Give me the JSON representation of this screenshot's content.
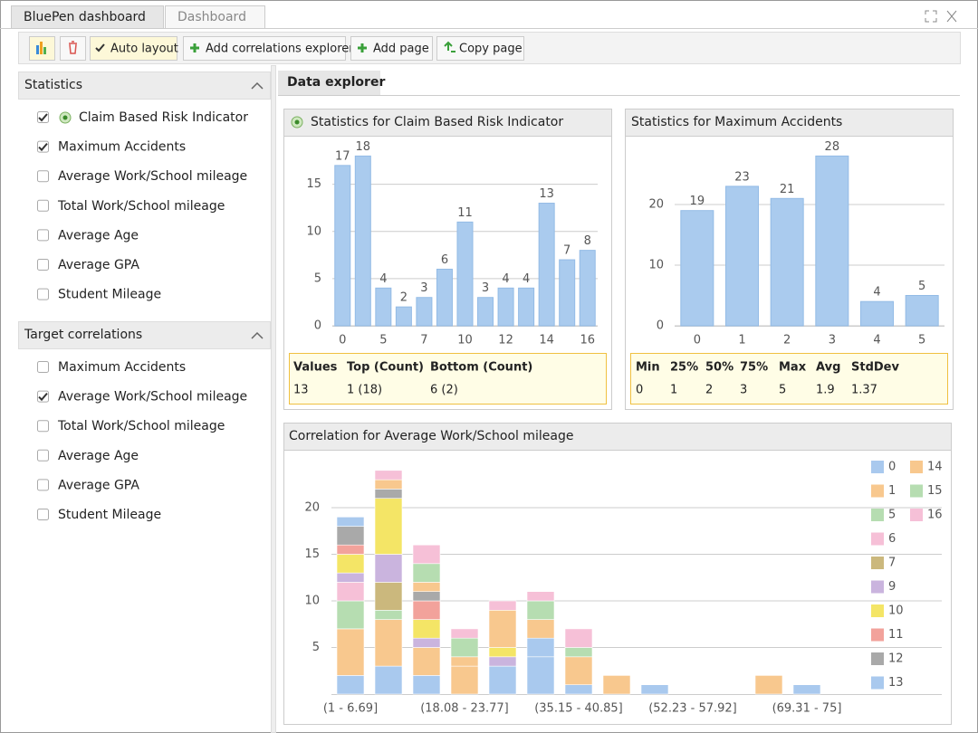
{
  "tabs": [
    "BluePen dashboard",
    "Dashboard"
  ],
  "toolbar": [
    "Auto layout",
    "Add correlations explorer",
    "Add page",
    "Copy page"
  ],
  "groups": [
    {
      "title": "Statistics",
      "items": [
        {
          "label": "Claim Based Risk Indicator",
          "checked": true
        },
        {
          "label": "Maximum Accidents",
          "checked": true
        },
        {
          "label": "Average Work/School mileage",
          "checked": false
        },
        {
          "label": "Total Work/School mileage",
          "checked": false
        },
        {
          "label": "Average Age",
          "checked": false
        },
        {
          "label": "Average GPA",
          "checked": false
        },
        {
          "label": "Student Mileage",
          "checked": false
        }
      ]
    },
    {
      "title": "Target correlations",
      "items": [
        {
          "label": "Maximum Accidents",
          "checked": false
        },
        {
          "label": "Average Work/School mileage",
          "checked": true
        },
        {
          "label": "Total Work/School mileage",
          "checked": false
        },
        {
          "label": "Average Age",
          "checked": false
        },
        {
          "label": "Average GPA",
          "checked": false
        },
        {
          "label": "Student Mileage",
          "checked": false
        }
      ]
    }
  ],
  "explorer_tab": "Data explorer",
  "panels": [
    {
      "title": "Statistics for Claim Based Risk Indicator",
      "chart": {
        "type": "bar",
        "color": "#aacbee",
        "categories": [
          0,
          null,
          5,
          null,
          7,
          null,
          10,
          null,
          12,
          null,
          14,
          null,
          16
        ],
        "values": [
          17,
          18,
          4,
          2,
          3,
          6,
          11,
          3,
          4,
          4,
          13,
          7,
          8
        ],
        "ylim": [
          0,
          19
        ],
        "yticks": [
          0,
          5,
          10,
          15
        ],
        "grid": true
      },
      "table": {
        "header": [
          "Values",
          "Top (Count)",
          "Bottom (Count)"
        ],
        "rows": [
          [
            13,
            "1 (18)",
            "6 (2)"
          ]
        ]
      }
    },
    {
      "title": "Statistics for Maximum Accidents",
      "chart": {
        "type": "bar",
        "color": "#aacbee",
        "categories": [
          0,
          1,
          2,
          3,
          4,
          5
        ],
        "values": [
          19,
          23,
          21,
          28,
          4,
          5
        ],
        "ylim": [
          0,
          30
        ],
        "yticks": [
          0,
          10,
          20
        ],
        "grid": true
      },
      "table": {
        "header": [
          "Min",
          "25%",
          "50%",
          "75%",
          "Max",
          "Avg",
          "StdDev"
        ],
        "rows": [
          [
            0,
            1,
            2,
            3,
            5,
            1.9,
            1.37
          ]
        ]
      }
    },
    {
      "title": "Correlation for Average Work/School mileage",
      "chart": {
        "type": "stacked_bar",
        "categories": [
          "(1 - 6.69]",
          null,
          null,
          "(18.08 - 23.77]",
          null,
          null,
          "(35.15 - 40.85]",
          null,
          null,
          "(52.23 - 57.92]",
          null,
          null,
          "(69.31 - 75]"
        ],
        "series": [
          {
            "name": "0",
            "color": "#a9c9ee",
            "values": [
              2,
              3,
              2,
              0,
              3,
              4,
              1,
              0,
              0,
              0,
              0,
              0,
              0
            ]
          },
          {
            "name": "1",
            "color": "#f8c88e",
            "values": [
              5,
              5,
              3,
              3,
              0,
              0,
              0,
              0,
              0,
              0,
              0,
              0,
              0
            ]
          },
          {
            "name": "5",
            "color": "#b6ddb1",
            "values": [
              3,
              1,
              0,
              0,
              0,
              0,
              0,
              0,
              0,
              0,
              0,
              0,
              0
            ]
          },
          {
            "name": "6",
            "color": "#f6c0d7",
            "values": [
              2,
              0,
              0,
              0,
              0,
              0,
              0,
              0,
              0,
              0,
              0,
              0,
              0
            ]
          },
          {
            "name": "7",
            "color": "#cbb87d",
            "values": [
              0,
              3,
              0,
              0,
              0,
              0,
              0,
              0,
              0,
              0,
              0,
              0,
              0
            ]
          },
          {
            "name": "9",
            "color": "#cab4de",
            "values": [
              1,
              3,
              1,
              0,
              1,
              0,
              0,
              0,
              0,
              0,
              0,
              0,
              0
            ]
          },
          {
            "name": "10",
            "color": "#f4e566",
            "values": [
              2,
              6,
              2,
              0,
              1,
              0,
              0,
              0,
              0,
              0,
              0,
              0,
              0
            ]
          },
          {
            "name": "11",
            "color": "#f2a29b",
            "values": [
              1,
              0,
              2,
              0,
              0,
              0,
              0,
              0,
              0,
              0,
              0,
              0,
              0
            ]
          },
          {
            "name": "12",
            "color": "#a9a9a9",
            "values": [
              2,
              1,
              1,
              0,
              0,
              0,
              0,
              0,
              0,
              0,
              0,
              0,
              0
            ]
          },
          {
            "name": "13",
            "color": "#a9c9ee",
            "values": [
              1,
              0,
              0,
              0,
              0,
              2,
              0,
              0,
              1,
              0,
              0,
              0,
              1
            ]
          },
          {
            "name": "14",
            "color": "#f8c88e",
            "values": [
              0,
              1,
              1,
              1,
              4,
              2,
              3,
              2,
              0,
              0,
              0,
              2,
              0
            ]
          },
          {
            "name": "15",
            "color": "#b6ddb1",
            "values": [
              0,
              0,
              2,
              2,
              0,
              2,
              1,
              0,
              0,
              0,
              0,
              0,
              0
            ]
          },
          {
            "name": "16",
            "color": "#f6c0d7",
            "values": [
              0,
              1,
              2,
              1,
              1,
              1,
              2,
              0,
              0,
              0,
              0,
              0,
              0
            ]
          }
        ],
        "ylim": [
          0,
          25
        ],
        "yticks": [
          5,
          10,
          15,
          20
        ],
        "grid": true
      }
    }
  ]
}
